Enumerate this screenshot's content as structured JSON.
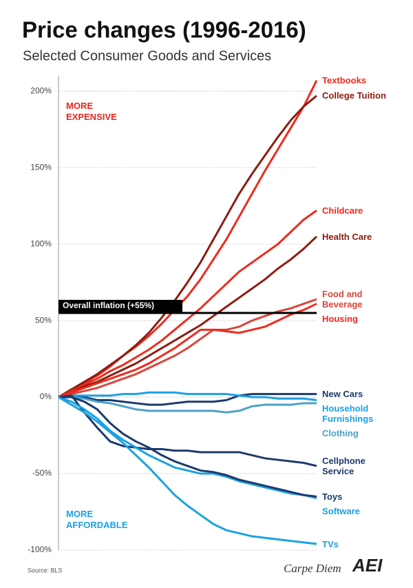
{
  "chart_data": {
    "type": "line",
    "title": "Price changes (1996-2016)",
    "subtitle": "Selected Consumer Goods and Services",
    "categories": [
      null,
      null,
      null,
      null,
      null,
      null,
      null,
      null,
      null,
      null,
      null,
      null,
      null,
      null,
      null,
      null,
      null,
      null,
      null,
      null,
      null
    ],
    "ylim": [
      -100,
      210
    ],
    "yticks": [
      {
        "value": -100,
        "label": "-100%"
      },
      {
        "value": -50,
        "label": "-50%"
      },
      {
        "value": 0,
        "label": "0%"
      },
      {
        "value": 50,
        "label": "50%"
      },
      {
        "value": 100,
        "label": "100%"
      },
      {
        "value": 150,
        "label": "150%"
      },
      {
        "value": 200,
        "label": "200%"
      }
    ],
    "grid": true,
    "series": [
      {
        "name": "Textbooks",
        "color": "#ef2a1d",
        "values": [
          0,
          4,
          9,
          14,
          20,
          27,
          33,
          40,
          48,
          57,
          66,
          77,
          90,
          103,
          118,
          133,
          148,
          162,
          176,
          190,
          207
        ]
      },
      {
        "name": "College Tuition",
        "color": "#8c1d10",
        "values": [
          0,
          5,
          10,
          15,
          21,
          27,
          34,
          42,
          52,
          63,
          75,
          88,
          103,
          118,
          133,
          146,
          158,
          170,
          181,
          190,
          197
        ]
      },
      {
        "name": "Childcare",
        "color": "#ef2a1d",
        "values": [
          0,
          4,
          8,
          12,
          17,
          21,
          26,
          31,
          37,
          44,
          51,
          58,
          66,
          74,
          82,
          88,
          94,
          100,
          108,
          116,
          122
        ]
      },
      {
        "name": "Health Care",
        "color": "#8c1d10",
        "values": [
          0,
          3,
          7,
          10,
          14,
          18,
          22,
          27,
          32,
          37,
          42,
          47,
          53,
          59,
          65,
          71,
          77,
          84,
          90,
          97,
          105
        ]
      },
      {
        "name": "Food and\nBeverage",
        "color": "#d9463b",
        "values": [
          0,
          2,
          4,
          6,
          9,
          12,
          15,
          19,
          23,
          27,
          32,
          38,
          44,
          44,
          46,
          50,
          53,
          56,
          58,
          61,
          64
        ]
      },
      {
        "name": "Housing",
        "color": "#ef2a1d",
        "values": [
          0,
          3,
          6,
          9,
          12,
          15,
          18,
          22,
          27,
          32,
          38,
          44,
          44,
          43,
          42,
          44,
          46,
          50,
          54,
          57,
          61
        ]
      },
      {
        "name": "New Cars",
        "color": "#1d3a6e",
        "values": [
          0,
          1,
          0,
          -2,
          -2,
          -3,
          -4,
          -5,
          -5,
          -4,
          -3,
          -3,
          -3,
          -2,
          1,
          2,
          2,
          2,
          2,
          2,
          2
        ]
      },
      {
        "name": "Household\nFurnishings",
        "color": "#1ba1e2",
        "values": [
          0,
          1,
          1,
          1,
          1,
          2,
          2,
          3,
          3,
          3,
          2,
          2,
          2,
          2,
          1,
          0,
          0,
          -1,
          -1,
          -1,
          -2
        ]
      },
      {
        "name": "Clothing",
        "color": "#4aa3c7",
        "values": [
          0,
          0,
          -1,
          -3,
          -4,
          -6,
          -8,
          -9,
          -9,
          -9,
          -9,
          -9,
          -9,
          -10,
          -9,
          -6,
          -5,
          -5,
          -5,
          -4,
          -4
        ]
      },
      {
        "name": "Cellphone\nService",
        "color": "#1d3a6e",
        "values": [
          0,
          1,
          -10,
          -20,
          -29,
          -32,
          -33,
          -34,
          -34,
          -35,
          -35,
          -36,
          -36,
          -36,
          -36,
          -38,
          -40,
          -41,
          -42,
          -43,
          -45
        ]
      },
      {
        "name": "Software",
        "color": "#1ba1e2",
        "values": [
          0,
          -3,
          -8,
          -14,
          -22,
          -28,
          -33,
          -38,
          -42,
          -46,
          -48,
          -50,
          -50,
          -52,
          -55,
          -57,
          -59,
          -61,
          -63,
          -64,
          -66
        ]
      },
      {
        "name": "Toys",
        "color": "#1d3a6e",
        "values": [
          0,
          0,
          -3,
          -8,
          -17,
          -24,
          -29,
          -33,
          -38,
          -42,
          -45,
          -48,
          -49,
          -51,
          -54,
          -56,
          -58,
          -60,
          -62,
          -64,
          -65
        ]
      },
      {
        "name": "TVs",
        "color": "#1ba1e2",
        "values": [
          0,
          -5,
          -10,
          -16,
          -23,
          -30,
          -38,
          -46,
          -55,
          -64,
          -71,
          -77,
          -83,
          -87,
          -89,
          -91,
          -92,
          -93,
          -94,
          -95,
          -96
        ]
      }
    ],
    "reference_line": {
      "label": "Overall inflation (+55%)",
      "value": 55,
      "color": "#000000"
    },
    "annotations": [
      {
        "text": "MORE\nEXPENSIVE",
        "color": "#e8261c"
      },
      {
        "text": "MORE\nAFFORDABLE",
        "color": "#1ba1e2"
      }
    ],
    "source": "Source: BLS",
    "footer_brand": "Carpe Diem",
    "logo": "AEI"
  }
}
